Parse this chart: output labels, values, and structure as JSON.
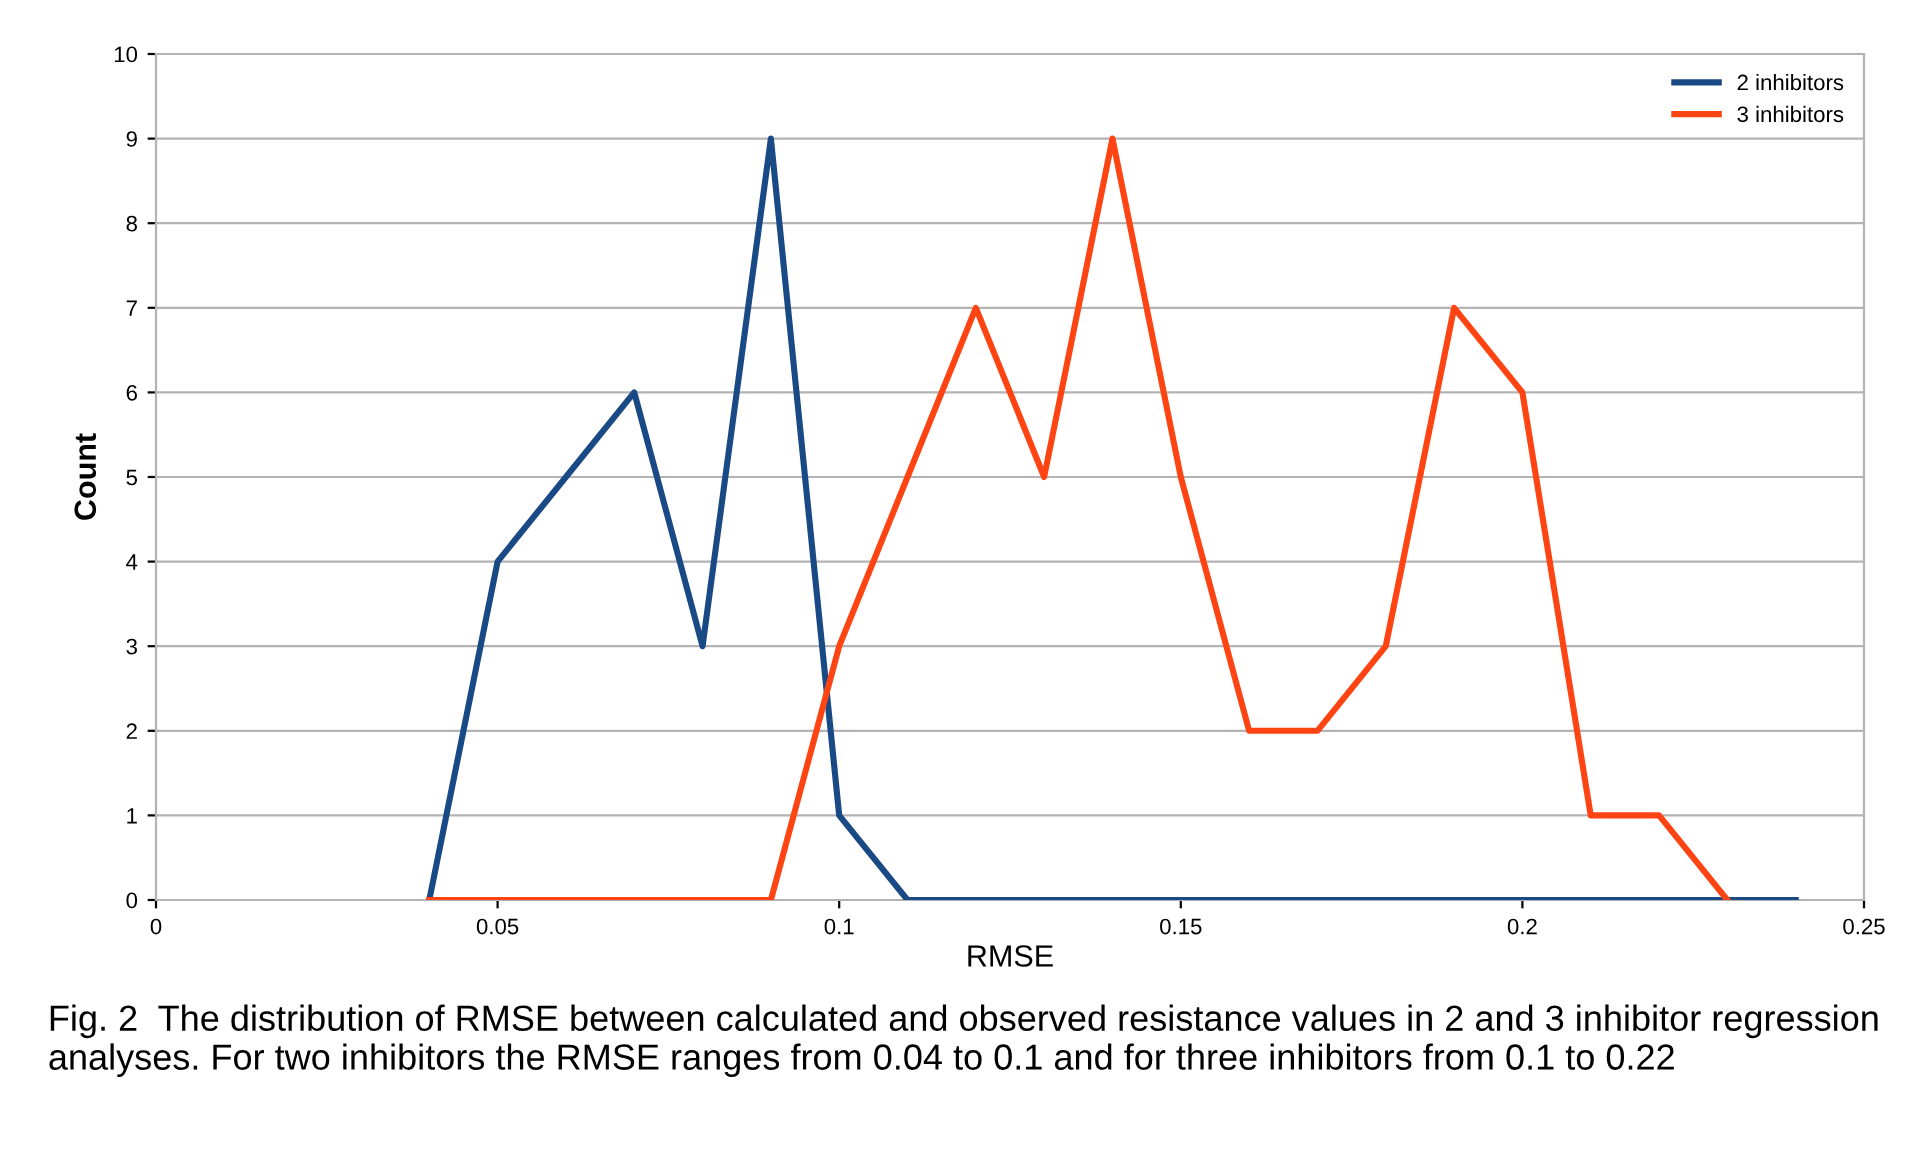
{
  "chart_data": {
    "type": "line",
    "xlabel": "RMSE",
    "ylabel": "Count",
    "x": [
      0.04,
      0.05,
      0.06,
      0.07,
      0.08,
      0.09,
      0.1,
      0.11,
      0.12,
      0.13,
      0.14,
      0.15,
      0.16,
      0.17,
      0.18,
      0.19,
      0.2,
      0.21,
      0.22,
      0.23,
      0.24
    ],
    "series": [
      {
        "name": "2 inhibitors",
        "color": "#1a4a86",
        "values": [
          0,
          4,
          5,
          6,
          3,
          9,
          1,
          0,
          0,
          0,
          0,
          0,
          0,
          0,
          0,
          0,
          0,
          0,
          0,
          0,
          0
        ]
      },
      {
        "name": "3 inhibitors",
        "color": "#ff4413",
        "values": [
          0,
          0,
          0,
          0,
          0,
          0,
          3,
          5,
          7,
          5,
          9,
          5,
          2,
          2,
          3,
          7,
          6,
          1,
          1,
          0,
          null
        ]
      }
    ],
    "xlim": [
      0,
      0.25
    ],
    "xticks": [
      0,
      0.05,
      0.1,
      0.15,
      0.2,
      0.25
    ],
    "ylim": [
      0,
      10
    ],
    "yticks": [
      0,
      1,
      2,
      3,
      4,
      5,
      6,
      7,
      8,
      9,
      10
    ],
    "grid": "y",
    "legend": "top right",
    "marker": "none",
    "line_style": "solid",
    "annotations": [
      "Fig. 2  The distribution of RMSE between calculated and observed resistance values in 2 and 3 inhibitor regression analyses. For two inhibitors the RMSE ranges from 0.04 to 0.1 and for three inhibitors from 0.1 to 0.22"
    ]
  }
}
